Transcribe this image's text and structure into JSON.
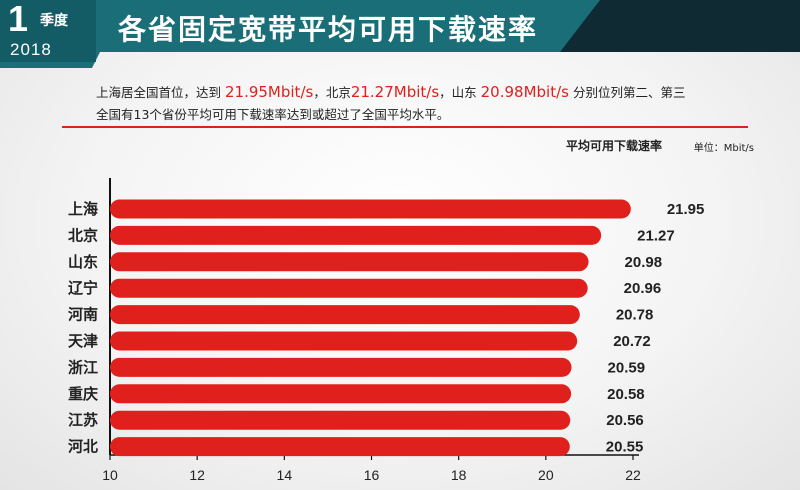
{
  "header": {
    "quarter_number": "1",
    "quarter_label": "季度",
    "year": "2018",
    "title": "各省固定宽带平均可用下载速率"
  },
  "description": {
    "line1": [
      {
        "text": "上海居全国首位，达到 ",
        "highlight": false
      },
      {
        "text": "21.95Mbit/s",
        "highlight": true
      },
      {
        "text": "，北京",
        "highlight": false
      },
      {
        "text": "21.27Mbit/s",
        "highlight": true
      },
      {
        "text": "，山东 ",
        "highlight": false
      },
      {
        "text": "20.98Mbit/s",
        "highlight": true
      },
      {
        "text": " 分别位列第二、第三",
        "highlight": false
      }
    ],
    "line2": "全国有13个省份平均可用下载速率达到或超过了全国平均水平。"
  },
  "colors": {
    "accent_red": "#e0201c",
    "header_teal": "#1a6e78"
  },
  "chart_data": {
    "type": "bar",
    "orientation": "horizontal",
    "metric_label": "平均可用下载速率",
    "unit_label": "单位：Mbit/s",
    "categories": [
      "上海",
      "北京",
      "山东",
      "辽宁",
      "河南",
      "天津",
      "浙江",
      "重庆",
      "江苏",
      "河北"
    ],
    "values": [
      21.95,
      21.27,
      20.98,
      20.96,
      20.78,
      20.72,
      20.59,
      20.58,
      20.56,
      20.55
    ],
    "value_labels": [
      "21.95",
      "21.27",
      "20.98",
      "20.96",
      "20.78",
      "20.72",
      "20.59",
      "20.58",
      "20.56",
      "20.55"
    ],
    "xlim": [
      10,
      22
    ],
    "xticks": [
      "10",
      "12",
      "14",
      "16",
      "18",
      "20",
      "22"
    ],
    "grid": false,
    "bar_color": "#e0201c"
  }
}
